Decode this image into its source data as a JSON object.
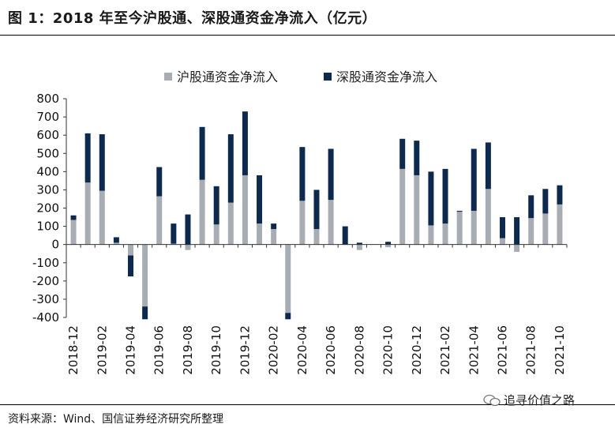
{
  "header": {
    "title": "图 1：2018 年至今沪股通、深股通资金净流入（亿元）"
  },
  "footer": {
    "source": "资料来源：Wind、国信证券经济研究所整理",
    "watermark": "追寻价值之路"
  },
  "colors": {
    "sh": "#a7adb3",
    "sz": "#0d2a4e"
  },
  "chart_data": {
    "type": "bar",
    "stacked": true,
    "title": "",
    "xlabel": "",
    "ylabel": "",
    "ylim": [
      -400,
      800
    ],
    "yticks": [
      800,
      700,
      600,
      500,
      400,
      300,
      200,
      100,
      0,
      -100,
      -200,
      -300,
      -400
    ],
    "legend": {
      "position": "top",
      "sh_label": "沪股通资金净流入",
      "sz_label": "深股通资金净流入"
    },
    "categories": [
      "2018-12",
      "2019-01",
      "2019-02",
      "2019-03",
      "2019-04",
      "2019-05",
      "2019-06",
      "2019-07",
      "2019-08",
      "2019-09",
      "2019-10",
      "2019-11",
      "2019-12",
      "2020-01",
      "2020-02",
      "2020-03",
      "2020-04",
      "2020-05",
      "2020-06",
      "2020-07",
      "2020-08",
      "2020-09",
      "2020-10",
      "2020-11",
      "2020-12",
      "2021-01",
      "2021-02",
      "2021-03",
      "2021-04",
      "2021-05",
      "2021-06",
      "2021-07",
      "2021-08",
      "2021-09",
      "2021-10"
    ],
    "x_tick_labels": [
      "2018-12",
      "2019-02",
      "2019-04",
      "2019-06",
      "2019-08",
      "2019-10",
      "2019-12",
      "2020-02",
      "2020-04",
      "2020-06",
      "2020-08",
      "2020-10",
      "2020-12",
      "2021-02",
      "2021-04",
      "2021-06",
      "2021-08",
      "2021-10"
    ],
    "series": [
      {
        "name": "沪股通资金净流入",
        "values": [
          135,
          340,
          295,
          10,
          -60,
          -340,
          265,
          5,
          -30,
          355,
          110,
          230,
          380,
          115,
          85,
          -375,
          240,
          85,
          245,
          0,
          -30,
          0,
          -15,
          415,
          380,
          105,
          115,
          180,
          185,
          305,
          35,
          -40,
          145,
          170,
          220
        ]
      },
      {
        "name": "深股通资金净流入",
        "values": [
          25,
          270,
          310,
          30,
          -115,
          -70,
          160,
          110,
          165,
          290,
          210,
          375,
          350,
          265,
          30,
          -35,
          295,
          215,
          280,
          100,
          10,
          0,
          15,
          165,
          190,
          295,
          300,
          5,
          340,
          255,
          115,
          150,
          125,
          135,
          105
        ]
      }
    ]
  }
}
